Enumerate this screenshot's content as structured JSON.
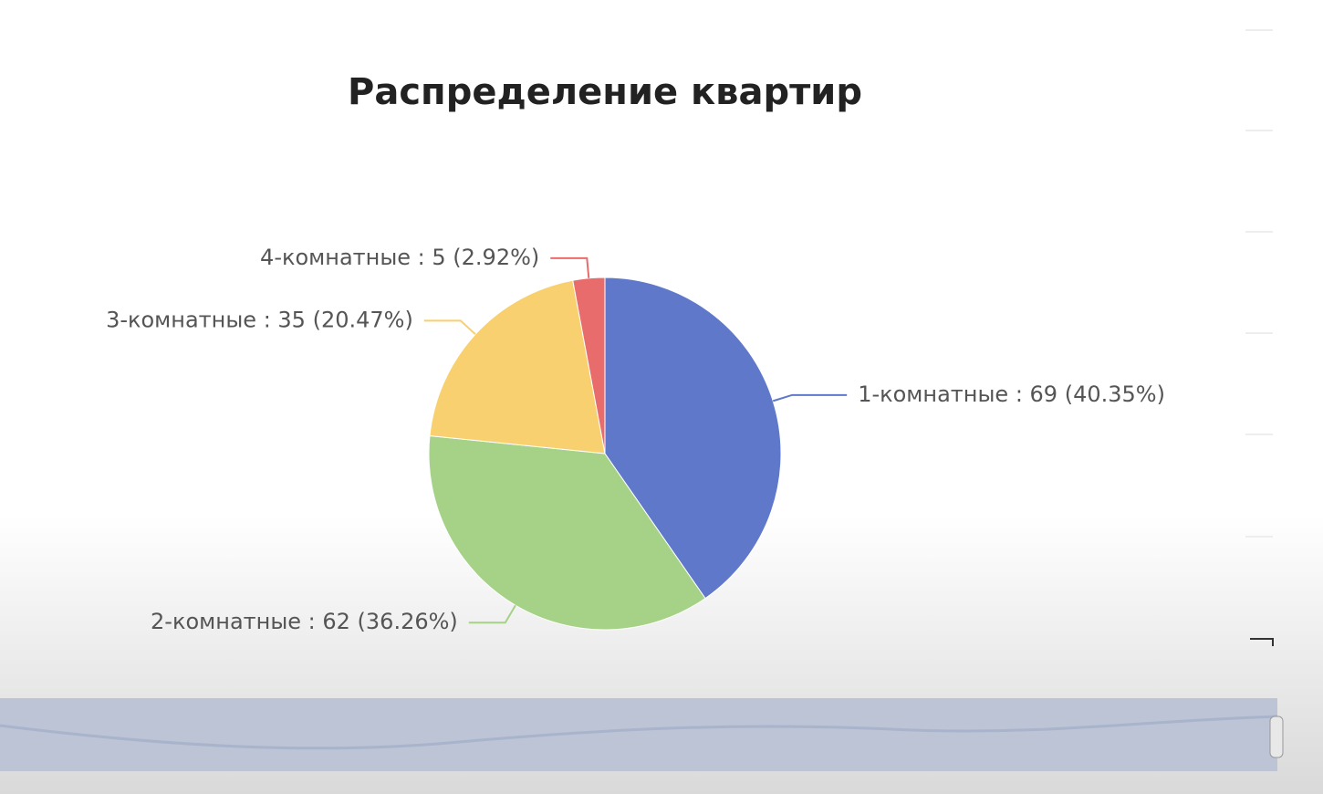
{
  "chart_data": {
    "type": "pie",
    "title": "Распределение квартир",
    "values": [
      69,
      62,
      35,
      5
    ],
    "value_labels": [
      "1-комнатные : 69 (40.35%)",
      "2-комнатные : 62 (36.26%)",
      "3-комнатные : 35 (20.47%)",
      "4-комнатные : 5 (2.92%)"
    ],
    "colors": [
      "#5f78ca",
      "#a5d286",
      "#f8d06f",
      "#e86c6c"
    ]
  }
}
